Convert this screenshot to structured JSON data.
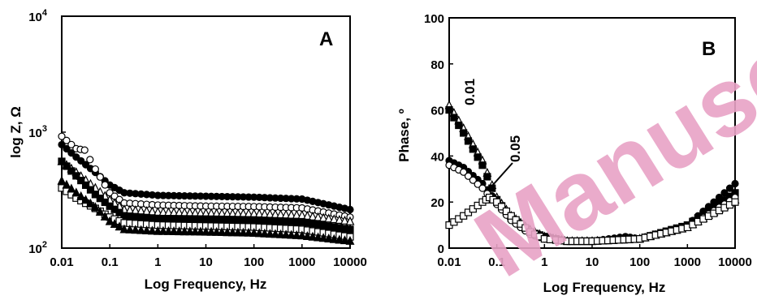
{
  "chart_data": [
    {
      "type": "scatter",
      "panel_label": "A",
      "xlabel": "Log Frequency, Hz",
      "ylabel": "log Z, Ω",
      "xscale": "log",
      "yscale": "log",
      "xlim": [
        0.01,
        10000
      ],
      "ylim": [
        100,
        10000
      ],
      "xticks": [
        "0.01",
        "0.1",
        "1",
        "10",
        "100",
        "1000",
        "10000"
      ],
      "yticks_base": "10",
      "yticks_exp": [
        "2",
        "3",
        "4"
      ],
      "series": [
        {
          "marker": "filled-circle",
          "points": [
            [
              0.01,
              780
            ],
            [
              0.02,
              610
            ],
            [
              0.05,
              450
            ],
            [
              0.1,
              350
            ],
            [
              0.2,
              300
            ],
            [
              1,
              285
            ],
            [
              10,
              280
            ],
            [
              100,
              275
            ],
            [
              1000,
              265
            ],
            [
              10000,
              215
            ]
          ]
        },
        {
          "marker": "open-circle",
          "points": [
            [
              0.01,
              920
            ],
            [
              0.02,
              720
            ],
            [
              0.03,
              700
            ],
            [
              0.05,
              480
            ],
            [
              0.1,
              300
            ],
            [
              0.2,
              245
            ],
            [
              1,
              235
            ],
            [
              10,
              230
            ],
            [
              100,
              228
            ],
            [
              1000,
              222
            ],
            [
              10000,
              185
            ]
          ]
        },
        {
          "marker": "open-triangle",
          "points": [
            [
              0.01,
              560
            ],
            [
              0.02,
              450
            ],
            [
              0.05,
              330
            ],
            [
              0.1,
              260
            ],
            [
              0.2,
              215
            ],
            [
              1,
              205
            ],
            [
              10,
              200
            ],
            [
              100,
              198
            ],
            [
              1000,
              192
            ],
            [
              10000,
              170
            ]
          ]
        },
        {
          "marker": "filled-square",
          "points": [
            [
              0.01,
              560
            ],
            [
              0.02,
              420
            ],
            [
              0.05,
              290
            ],
            [
              0.1,
              230
            ],
            [
              0.2,
              190
            ],
            [
              1,
              180
            ],
            [
              10,
              178
            ],
            [
              100,
              175
            ],
            [
              1000,
              168
            ],
            [
              10000,
              145
            ]
          ]
        },
        {
          "marker": "open-square",
          "points": [
            [
              0.01,
              330
            ],
            [
              0.02,
              270
            ],
            [
              0.05,
              220
            ],
            [
              0.1,
              185
            ],
            [
              0.2,
              165
            ],
            [
              1,
              158
            ],
            [
              10,
              155
            ],
            [
              100,
              152
            ],
            [
              1000,
              145
            ],
            [
              10000,
              125
            ]
          ]
        },
        {
          "marker": "filled-triangle",
          "points": [
            [
              0.01,
              380
            ],
            [
              0.02,
              300
            ],
            [
              0.05,
              225
            ],
            [
              0.1,
              170
            ],
            [
              0.2,
              145
            ],
            [
              1,
              140
            ],
            [
              10,
              138
            ],
            [
              100,
              135
            ],
            [
              1000,
              128
            ],
            [
              10000,
              115
            ]
          ]
        }
      ]
    },
    {
      "type": "scatter",
      "panel_label": "B",
      "xlabel": "Log Frequency, Hz",
      "ylabel": "Phase, º",
      "xscale": "log",
      "yscale": "linear",
      "xlim": [
        0.01,
        10000
      ],
      "ylim": [
        0,
        100
      ],
      "xticks": [
        "0.01",
        "0.1",
        "1",
        "10",
        "100",
        "1000",
        "10000"
      ],
      "yticks": [
        "0",
        "20",
        "40",
        "60",
        "80",
        "100"
      ],
      "annotations": [
        "0.01",
        "0.05"
      ],
      "series": [
        {
          "marker": "open-triangle",
          "points": [
            [
              0.01,
              62
            ],
            [
              0.02,
              52
            ],
            [
              0.05,
              38
            ],
            [
              0.1,
              22
            ],
            [
              0.2,
              14
            ],
            [
              0.5,
              8
            ],
            [
              1,
              5
            ],
            [
              3,
              3
            ],
            [
              10,
              3
            ],
            [
              100,
              4
            ],
            [
              1000,
              9
            ],
            [
              10000,
              21
            ]
          ]
        },
        {
          "marker": "filled-square",
          "points": [
            [
              0.01,
              60
            ],
            [
              0.02,
              50
            ],
            [
              0.05,
              36
            ],
            [
              0.1,
              21
            ],
            [
              0.2,
              13
            ],
            [
              0.5,
              7
            ],
            [
              1,
              5
            ],
            [
              3,
              3
            ],
            [
              10,
              3
            ],
            [
              100,
              4
            ],
            [
              1000,
              10
            ],
            [
              10000,
              24
            ]
          ]
        },
        {
          "marker": "filled-circle",
          "points": [
            [
              0.01,
              38
            ],
            [
              0.02,
              35
            ],
            [
              0.05,
              28
            ],
            [
              0.1,
              20
            ],
            [
              0.2,
              13
            ],
            [
              0.5,
              7
            ],
            [
              1,
              4
            ],
            [
              3,
              3
            ],
            [
              10,
              3
            ],
            [
              50,
              5
            ],
            [
              100,
              4
            ],
            [
              1000,
              10
            ],
            [
              10000,
              28
            ]
          ]
        },
        {
          "marker": "open-circle",
          "points": [
            [
              0.01,
              36
            ],
            [
              0.02,
              33
            ],
            [
              0.05,
              26
            ],
            [
              0.1,
              19
            ],
            [
              0.2,
              12
            ],
            [
              0.5,
              6
            ],
            [
              1,
              4
            ],
            [
              3,
              3
            ],
            [
              10,
              3
            ],
            [
              100,
              4
            ],
            [
              1000,
              9
            ],
            [
              10000,
              22
            ]
          ]
        },
        {
          "marker": "open-square",
          "points": [
            [
              0.01,
              10
            ],
            [
              0.02,
              14
            ],
            [
              0.05,
              20
            ],
            [
              0.07,
              22
            ],
            [
              0.1,
              20
            ],
            [
              0.2,
              14
            ],
            [
              0.5,
              7
            ],
            [
              1,
              4
            ],
            [
              3,
              3
            ],
            [
              10,
              3
            ],
            [
              100,
              4
            ],
            [
              1000,
              9
            ],
            [
              10000,
              20
            ]
          ]
        }
      ]
    }
  ],
  "watermark": {
    "text": "Manuscript",
    "color": "#e8a3c6"
  }
}
